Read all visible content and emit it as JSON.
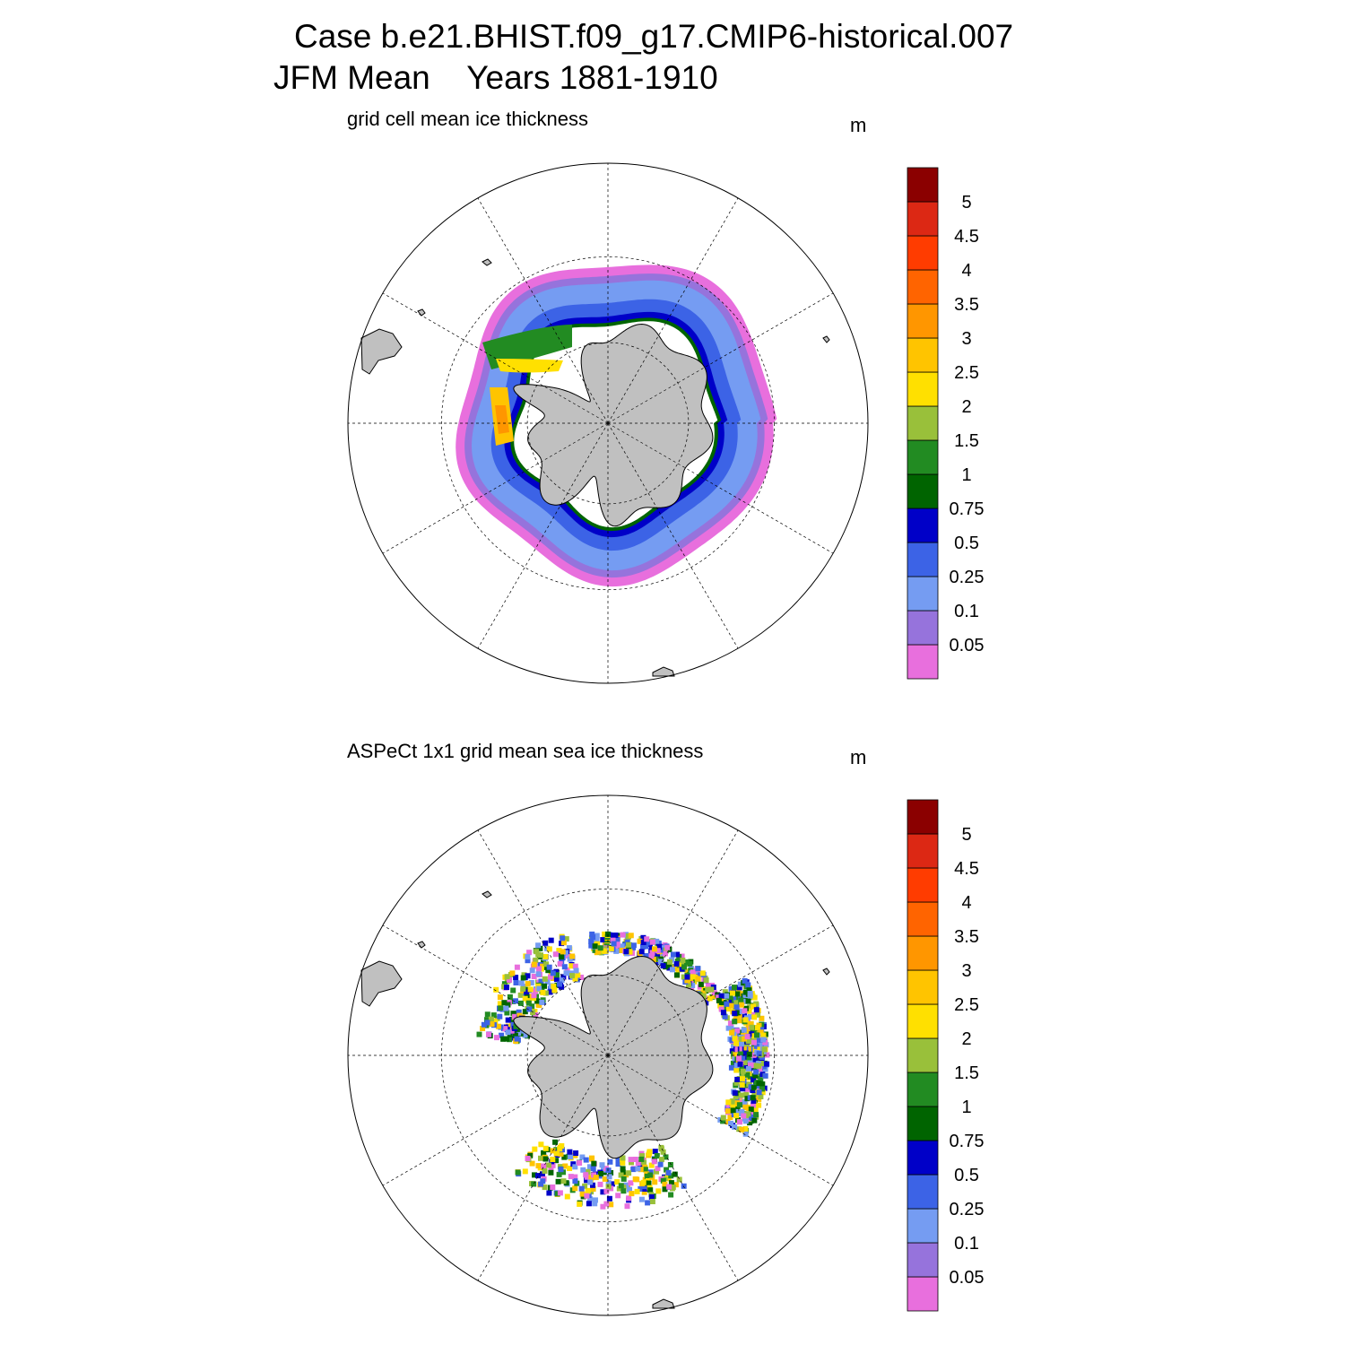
{
  "title": {
    "line1": "Case b.e21.BHIST.f09_g17.CMIP6-historical.007",
    "line2": "JFM Mean    Years 1881-1910"
  },
  "colors": {
    "land": "#c0c0c0",
    "ocean": "#ffffff",
    "graticule": "#000000",
    "scale": [
      "#e86fdd",
      "#9673dc",
      "#759cf2",
      "#3c63e6",
      "#0000c8",
      "#006400",
      "#228b22",
      "#99c03a",
      "#ffe000",
      "#ffc400",
      "#ff9600",
      "#ff6400",
      "#ff3c00",
      "#dc2814",
      "#8b0000"
    ]
  },
  "colorbar": {
    "labels": [
      "0.05",
      "0.1",
      "0.25",
      "0.5",
      "0.75",
      "1",
      "1.5",
      "2",
      "2.5",
      "3",
      "3.5",
      "4",
      "4.5",
      "5"
    ]
  },
  "panels": [
    {
      "subtitle": "grid cell mean ice thickness",
      "unit": "m",
      "kind": "model"
    },
    {
      "subtitle": "ASPeCt 1x1 grid mean sea ice thickness",
      "unit": "m",
      "kind": "obs"
    }
  ]
}
